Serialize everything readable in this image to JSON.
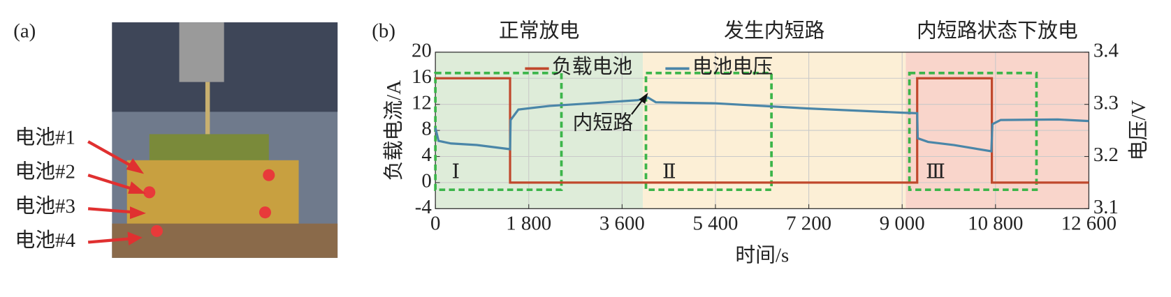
{
  "panel_a": {
    "label": "(a)",
    "cells": [
      "电池#1",
      "电池#2",
      "电池#3",
      "电池#4"
    ]
  },
  "chart_data": {
    "type": "line",
    "panel_label": "(b)",
    "x_label": "时间/s",
    "y_label": "负载电流/A",
    "y2_label": "电压/V",
    "xlim": [
      0,
      12600
    ],
    "xticks": [
      0,
      {
        "value": 1800,
        "label": "1 800"
      },
      {
        "value": 3600,
        "label": "3 600"
      },
      {
        "value": 5400,
        "label": "5 400"
      },
      {
        "value": 7200,
        "label": "7 200"
      },
      {
        "value": 9000,
        "label": "9 000"
      },
      {
        "value": 10800,
        "label": "10 800"
      },
      {
        "value": 12600,
        "label": "12 600"
      }
    ],
    "ylim": [
      -4,
      20
    ],
    "yticks": [
      -4,
      0,
      4,
      8,
      12,
      16,
      20
    ],
    "y2lim": [
      3.1,
      3.4
    ],
    "y2ticks": [
      3.1,
      3.2,
      3.3,
      3.4
    ],
    "grid": true,
    "legend": "upper left",
    "regions": [
      {
        "label": "正常放电",
        "start": 0,
        "end": 4000,
        "color": "#deecd9"
      },
      {
        "label": "发生内短路",
        "start": 4000,
        "end": 9070,
        "color": "#fcefd6"
      },
      {
        "label": "内短路状态下放电",
        "start": 9070,
        "end": 12600,
        "color": "#f9d5cb"
      }
    ],
    "boxes": [
      {
        "label": "Ⅰ",
        "start": 0,
        "end": 2430,
        "ymin": -1.1,
        "ymax": 16.8
      },
      {
        "label": "Ⅱ",
        "start": 4060,
        "end": 6480,
        "ymin": -1.1,
        "ymax": 16.8
      },
      {
        "label": "Ⅲ",
        "start": 9140,
        "end": 11590,
        "ymin": -1.1,
        "ymax": 16.8
      }
    ],
    "box_color": "#3cb54a",
    "annotation": {
      "text": "内短路",
      "xy": [
        4100,
        13.9
      ]
    },
    "series": [
      {
        "name": "负载电池",
        "color": "#c0482c",
        "x": [
          0,
          1440,
          1440,
          9290,
          9290,
          10730,
          10730,
          12600
        ],
        "values": [
          16,
          16,
          0,
          0,
          16,
          16,
          0,
          0
        ]
      },
      {
        "name": "电池电压",
        "color": "#4a86a8",
        "axis": "y2",
        "x": [
          0,
          60,
          300,
          800,
          1440,
          1450,
          1600,
          2200,
          3000,
          3900,
          4100,
          4250,
          5400,
          7200,
          9000,
          9290,
          9300,
          9500,
          10000,
          10720,
          10740,
          10900,
          12000,
          12600
        ],
        "values": [
          3.255,
          3.23,
          3.225,
          3.222,
          3.214,
          3.27,
          3.29,
          3.297,
          3.302,
          3.308,
          3.313,
          3.304,
          3.302,
          3.292,
          3.284,
          3.283,
          3.235,
          3.228,
          3.222,
          3.21,
          3.262,
          3.27,
          3.271,
          3.268
        ]
      }
    ]
  }
}
